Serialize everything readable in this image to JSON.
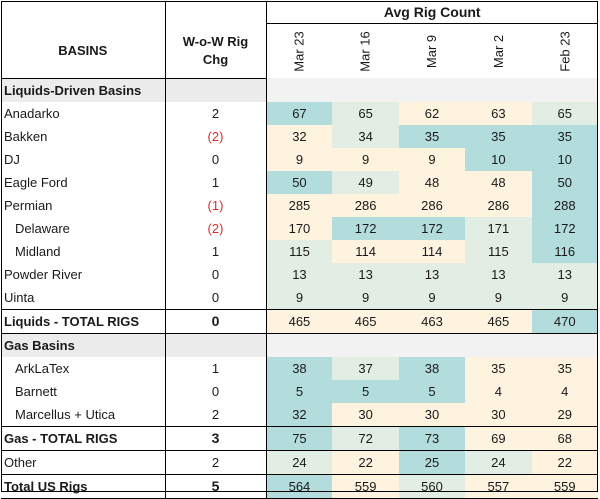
{
  "header": {
    "title": "Avg Rig Count",
    "basins_label": "BASINS",
    "chg_label_line1": "W-o-W Rig",
    "chg_label_line2": "Chg",
    "dates": [
      "Mar 23",
      "Mar 16",
      "Mar 9",
      "Mar 2",
      "Feb 23"
    ]
  },
  "liquids": {
    "section_label": "Liquids-Driven Basins",
    "rows": [
      {
        "name": "Anadarko",
        "chg": "2",
        "values": [
          "67",
          "65",
          "62",
          "63",
          "65"
        ]
      },
      {
        "name": "Bakken",
        "chg": "(2)",
        "values": [
          "32",
          "34",
          "35",
          "35",
          "35"
        ]
      },
      {
        "name": "DJ",
        "chg": "0",
        "values": [
          "9",
          "9",
          "9",
          "10",
          "10"
        ]
      },
      {
        "name": "Eagle Ford",
        "chg": "1",
        "values": [
          "50",
          "49",
          "48",
          "48",
          "50"
        ]
      },
      {
        "name": "Permian",
        "chg": "(1)",
        "values": [
          "285",
          "286",
          "286",
          "286",
          "288"
        ]
      },
      {
        "name": "Delaware",
        "chg": "(2)",
        "values": [
          "170",
          "172",
          "172",
          "171",
          "172"
        ],
        "indent": true
      },
      {
        "name": "Midland",
        "chg": "1",
        "values": [
          "115",
          "114",
          "114",
          "115",
          "116"
        ],
        "indent": true
      },
      {
        "name": "Powder River",
        "chg": "0",
        "values": [
          "13",
          "13",
          "13",
          "13",
          "13"
        ]
      },
      {
        "name": "Uinta",
        "chg": "0",
        "values": [
          "9",
          "9",
          "9",
          "9",
          "9"
        ]
      }
    ],
    "total": {
      "name": "Liquids - TOTAL RIGS",
      "chg": "0",
      "values": [
        "465",
        "465",
        "463",
        "465",
        "470"
      ]
    }
  },
  "gas": {
    "section_label": "Gas Basins",
    "rows": [
      {
        "name": "ArkLaTex",
        "chg": "1",
        "values": [
          "38",
          "37",
          "38",
          "35",
          "35"
        ],
        "indent": true
      },
      {
        "name": "Barnett",
        "chg": "0",
        "values": [
          "5",
          "5",
          "5",
          "4",
          "4"
        ],
        "indent": true
      },
      {
        "name": "Marcellus + Utica",
        "chg": "2",
        "values": [
          "32",
          "30",
          "30",
          "30",
          "29"
        ],
        "indent": true
      }
    ],
    "total": {
      "name": "Gas - TOTAL RIGS",
      "chg": "3",
      "values": [
        "75",
        "72",
        "73",
        "69",
        "68"
      ]
    }
  },
  "other": {
    "name": "Other",
    "chg": "2",
    "values": [
      "24",
      "22",
      "25",
      "24",
      "22"
    ]
  },
  "us_total": {
    "name": "Total US Rigs",
    "chg": "5",
    "values": [
      "564",
      "559",
      "560",
      "557",
      "559"
    ]
  },
  "colors": {
    "low": "#fdf3df",
    "mid": "#e2ede3",
    "high": "#b3dcdc",
    "negative_text": "#d0312d"
  }
}
